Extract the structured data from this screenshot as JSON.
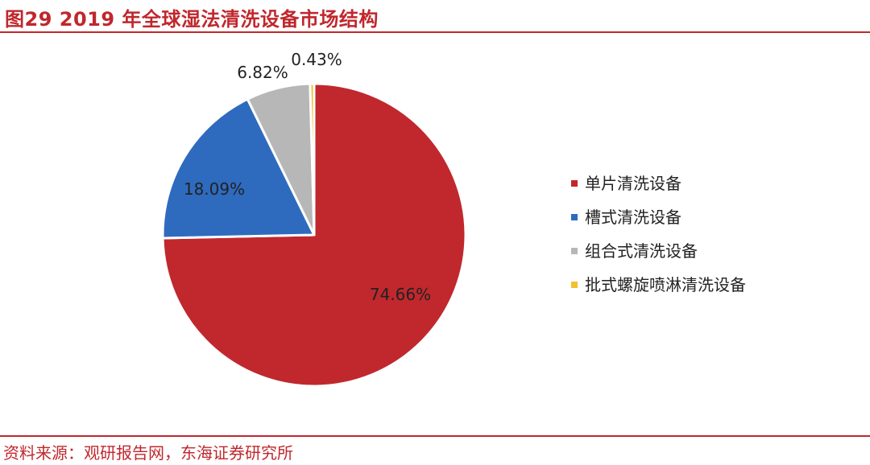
{
  "header": {
    "title": "图29  2019 年全球湿法清洗设备市场结构"
  },
  "footer": {
    "source": "资料来源：观研报告网，东海证券研究所"
  },
  "chart_data": {
    "type": "pie",
    "title": "图29  2019 年全球湿法清洗设备市场结构",
    "legend_position": "right",
    "slices": [
      {
        "name": "单片清洗设备",
        "value": 74.66,
        "label": "74.66%",
        "color": "#c0282d"
      },
      {
        "name": "槽式清洗设备",
        "value": 18.09,
        "label": "18.09%",
        "color": "#2e6bbf"
      },
      {
        "name": "组合式清洗设备",
        "value": 6.82,
        "label": "6.82%",
        "color": "#b7b7b7"
      },
      {
        "name": "批式螺旋喷淋清洗设备",
        "value": 0.43,
        "label": "0.43%",
        "color": "#f2c12e"
      }
    ]
  }
}
